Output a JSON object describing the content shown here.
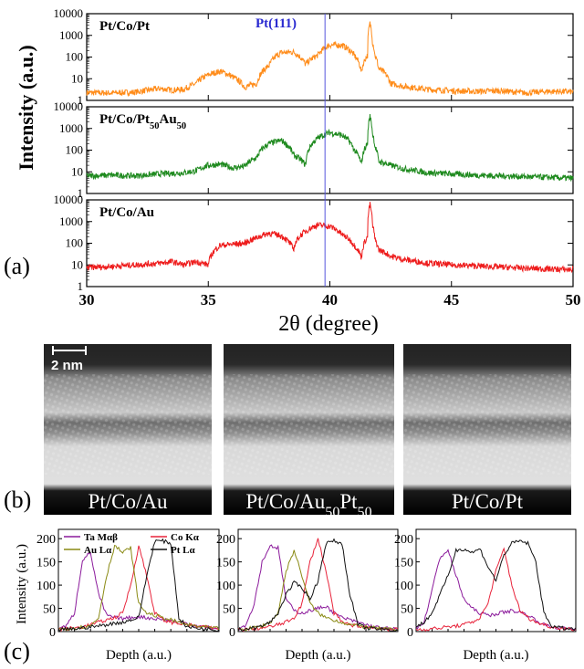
{
  "panel_labels": {
    "a": "(a)",
    "b": "(b)",
    "c": "(c)"
  },
  "xrd": {
    "ylabel": "Intensity (a.u.)",
    "xlabel": "2θ (degree)",
    "reference_label": "Pt(111)",
    "reference_color": "#3333cc"
  },
  "stem": {
    "scale_label": "2 nm",
    "panels": [
      {
        "label_html": "Pt/Co/Au"
      },
      {
        "label_html": "Pt/Co/Au<tspan baseline-shift=\"sub\" font-size=\"70%\">50</tspan>Pt<tspan baseline-shift=\"sub\" font-size=\"70%\">50</tspan>"
      },
      {
        "label_html": "Pt/Co/Pt"
      }
    ]
  },
  "eds": {
    "ylabel": "Intensity (a.u.)",
    "xlabel": "Depth (a.u.)",
    "legend": [
      {
        "name": "Ta Mαβ",
        "color": "#8b1a9b"
      },
      {
        "name": "Co Kα",
        "color": "#e8233a"
      },
      {
        "name": "Au Lα",
        "color": "#8a8a14"
      },
      {
        "name": "Pt Lα",
        "color": "#111111"
      }
    ]
  },
  "chart_data": [
    {
      "type": "line",
      "title": "",
      "xlabel": "2θ (degree)",
      "ylabel": "Intensity (a.u.)",
      "xlim": [
        30,
        50
      ],
      "y_scale": "log",
      "ylim": [
        1,
        10000
      ],
      "xticks": [
        30,
        35,
        40,
        45,
        50
      ],
      "yticks": [
        1,
        10,
        100,
        1000,
        10000
      ],
      "reference_line": {
        "x": 39.8,
        "label": "Pt(111)"
      },
      "panels": [
        {
          "name": "Pt/Co/Pt",
          "name_html": "Pt/Co/Pt",
          "color": "#ff8c1a",
          "x": [
            30,
            31,
            32,
            33,
            33.5,
            34,
            34.5,
            35,
            35.5,
            36,
            36.5,
            37,
            37.5,
            38,
            38.5,
            39,
            39.5,
            40,
            40.5,
            41,
            41.3,
            41.55,
            41.65,
            41.75,
            41.85,
            42,
            42.5,
            43,
            44,
            45,
            46,
            47,
            48,
            49,
            50
          ],
          "values": [
            2.3,
            2.2,
            2.4,
            3.5,
            3.0,
            3.2,
            6,
            15,
            22,
            12,
            4,
            6,
            40,
            160,
            170,
            45,
            120,
            360,
            350,
            120,
            18,
            120,
            3500,
            500,
            120,
            30,
            6,
            4.5,
            3.2,
            2.8,
            2.6,
            2.8,
            2.2,
            2.6,
            2.5
          ]
        },
        {
          "name": "Pt/Co/Pt50Au50",
          "name_html": "Pt/Co/Pt<tspan baseline-shift=\"sub\" font-size=\"70%\">50</tspan>Au<tspan baseline-shift=\"sub\" font-size=\"70%\">50</tspan>",
          "color": "#1f8a1f",
          "x": [
            30,
            31,
            32,
            33,
            34,
            34.5,
            35,
            35.5,
            36,
            36.5,
            37,
            37.5,
            38,
            38.5,
            39,
            39.5,
            40,
            40.5,
            41,
            41.3,
            41.55,
            41.65,
            41.75,
            41.85,
            42,
            42.5,
            43,
            44,
            45,
            46,
            47,
            48,
            49,
            50
          ],
          "values": [
            6.5,
            7,
            6.5,
            8,
            9,
            11,
            20,
            22,
            15,
            18,
            45,
            200,
            280,
            60,
            20,
            350,
            650,
            480,
            100,
            20,
            200,
            3500,
            600,
            150,
            30,
            20,
            14,
            9,
            8,
            7,
            6.5,
            6,
            5.5,
            5
          ]
        },
        {
          "name": "Pt/Co/Au",
          "name_html": "Pt/Co/Au",
          "color": "#ee1c1c",
          "x": [
            30,
            31,
            32,
            33,
            33.5,
            34,
            34.5,
            35,
            35.5,
            36,
            36.5,
            37,
            37.5,
            38,
            38.5,
            39,
            39.5,
            40,
            40.5,
            41,
            41.3,
            41.55,
            41.65,
            41.75,
            41.85,
            42,
            42.5,
            43,
            44,
            45,
            46,
            47,
            48,
            49,
            50
          ],
          "values": [
            7.5,
            8.5,
            10,
            12,
            14,
            10,
            14,
            10,
            80,
            90,
            100,
            180,
            290,
            220,
            50,
            350,
            700,
            600,
            250,
            80,
            20,
            200,
            6000,
            700,
            150,
            50,
            25,
            18,
            12,
            10,
            9,
            8,
            7,
            6.5,
            6
          ]
        }
      ]
    },
    {
      "type": "line",
      "title": "",
      "xlabel": "Depth (a.u.)",
      "ylabel": "Intensity (a.u.)",
      "ylim": [
        0,
        220
      ],
      "yticks": [
        0,
        50,
        100,
        150,
        200
      ],
      "panels": [
        {
          "name": "Pt/Co/Au",
          "x": [
            0,
            5,
            10,
            15,
            20,
            25,
            30,
            35,
            40,
            45,
            50,
            55,
            60,
            65,
            70,
            75,
            80,
            85,
            90,
            95,
            100
          ],
          "series": [
            {
              "name": "Ta Mαβ",
              "color": "#8b1a9b",
              "values": [
                8,
                12,
                40,
                155,
                170,
                80,
                35,
                30,
                28,
                30,
                32,
                30,
                28,
                26,
                24,
                20,
                18,
                14,
                10,
                8,
                6
              ]
            },
            {
              "name": "Co Kα",
              "color": "#e8233a",
              "values": [
                5,
                6,
                8,
                10,
                15,
                20,
                25,
                30,
                40,
                100,
                185,
                120,
                40,
                25,
                20,
                18,
                15,
                12,
                10,
                8,
                6
              ]
            },
            {
              "name": "Au Lα",
              "color": "#8a8a14",
              "values": [
                5,
                6,
                8,
                10,
                12,
                30,
                120,
                185,
                170,
                180,
                60,
                40,
                35,
                30,
                25,
                20,
                15,
                12,
                10,
                8,
                6
              ]
            },
            {
              "name": "Pt Lα",
              "color": "#111111",
              "values": [
                4,
                5,
                6,
                8,
                10,
                12,
                15,
                18,
                20,
                25,
                30,
                120,
                195,
                195,
                190,
                30,
                10,
                8,
                6,
                5,
                4
              ]
            }
          ]
        },
        {
          "name": "Pt/Co/Au50Pt50",
          "x": [
            0,
            5,
            10,
            15,
            20,
            25,
            30,
            35,
            40,
            45,
            50,
            55,
            60,
            65,
            70,
            75,
            80,
            85,
            90,
            95,
            100
          ],
          "series": [
            {
              "name": "Ta Mαβ",
              "color": "#8b1a9b",
              "values": [
                6,
                15,
                60,
                150,
                185,
                180,
                70,
                45,
                40,
                45,
                50,
                55,
                40,
                30,
                25,
                20,
                15,
                10,
                8,
                6,
                5
              ]
            },
            {
              "name": "Co Kα",
              "color": "#e8233a",
              "values": [
                4,
                5,
                6,
                8,
                10,
                15,
                20,
                30,
                60,
                150,
                200,
                130,
                40,
                20,
                15,
                12,
                10,
                8,
                6,
                5,
                4
              ]
            },
            {
              "name": "Au Lα",
              "color": "#8a8a14",
              "values": [
                4,
                6,
                8,
                12,
                20,
                40,
                130,
                175,
                120,
                60,
                40,
                30,
                25,
                20,
                15,
                12,
                10,
                8,
                6,
                5,
                4
              ]
            },
            {
              "name": "Pt Lα",
              "color": "#111111",
              "values": [
                4,
                6,
                8,
                12,
                20,
                40,
                80,
                105,
                95,
                70,
                110,
                190,
                195,
                190,
                80,
                15,
                8,
                6,
                5,
                4,
                3
              ]
            }
          ]
        },
        {
          "name": "Pt/Co/Pt",
          "x": [
            0,
            5,
            10,
            15,
            20,
            25,
            30,
            35,
            40,
            45,
            50,
            55,
            60,
            65,
            70,
            75,
            80,
            85,
            90,
            95,
            100
          ],
          "series": [
            {
              "name": "Ta Mαβ",
              "color": "#8b1a9b",
              "values": [
                8,
                20,
                90,
                160,
                175,
                120,
                70,
                50,
                40,
                35,
                38,
                42,
                45,
                42,
                35,
                25,
                15,
                10,
                8,
                6,
                5
              ]
            },
            {
              "name": "Co Kα",
              "color": "#e8233a",
              "values": [
                4,
                5,
                6,
                8,
                10,
                12,
                15,
                20,
                30,
                60,
                130,
                178,
                100,
                45,
                30,
                20,
                15,
                10,
                8,
                6,
                5
              ]
            },
            {
              "name": "Pt Lα",
              "color": "#111111",
              "values": [
                10,
                20,
                40,
                80,
                120,
                175,
                178,
                170,
                178,
                140,
                110,
                165,
                190,
                195,
                190,
                150,
                40,
                12,
                8,
                6,
                5
              ]
            }
          ]
        }
      ]
    }
  ]
}
